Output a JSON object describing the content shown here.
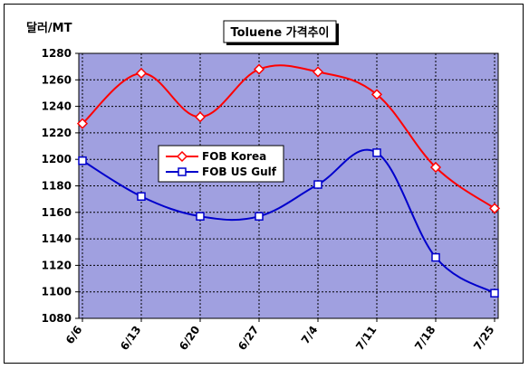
{
  "chart_data": {
    "type": "line",
    "title": "Toluene 가격추이",
    "ylabel": "달러/MT",
    "xlabel": "",
    "categories": [
      "6/6",
      "6/13",
      "6/20",
      "6/27",
      "7/4",
      "7/11",
      "7/18",
      "7/25"
    ],
    "ylim": [
      1080,
      1280
    ],
    "ytick_step": 20,
    "yticks": [
      "1080",
      "1100",
      "1120",
      "1140",
      "1160",
      "1180",
      "1200",
      "1220",
      "1240",
      "1260",
      "1280"
    ],
    "grid": true,
    "legend_position": "center-left",
    "plot_background": "#a0a0e0",
    "series": [
      {
        "name": "FOB Korea",
        "color": "#ff0000",
        "marker": "diamond",
        "values": [
          1227,
          1265,
          1232,
          1268,
          1266,
          1249,
          1194,
          1163
        ]
      },
      {
        "name": "FOB US Gulf",
        "color": "#0000cc",
        "marker": "square",
        "values": [
          1199,
          1172,
          1157,
          1157,
          1181,
          1205,
          1126,
          1099
        ]
      }
    ]
  }
}
